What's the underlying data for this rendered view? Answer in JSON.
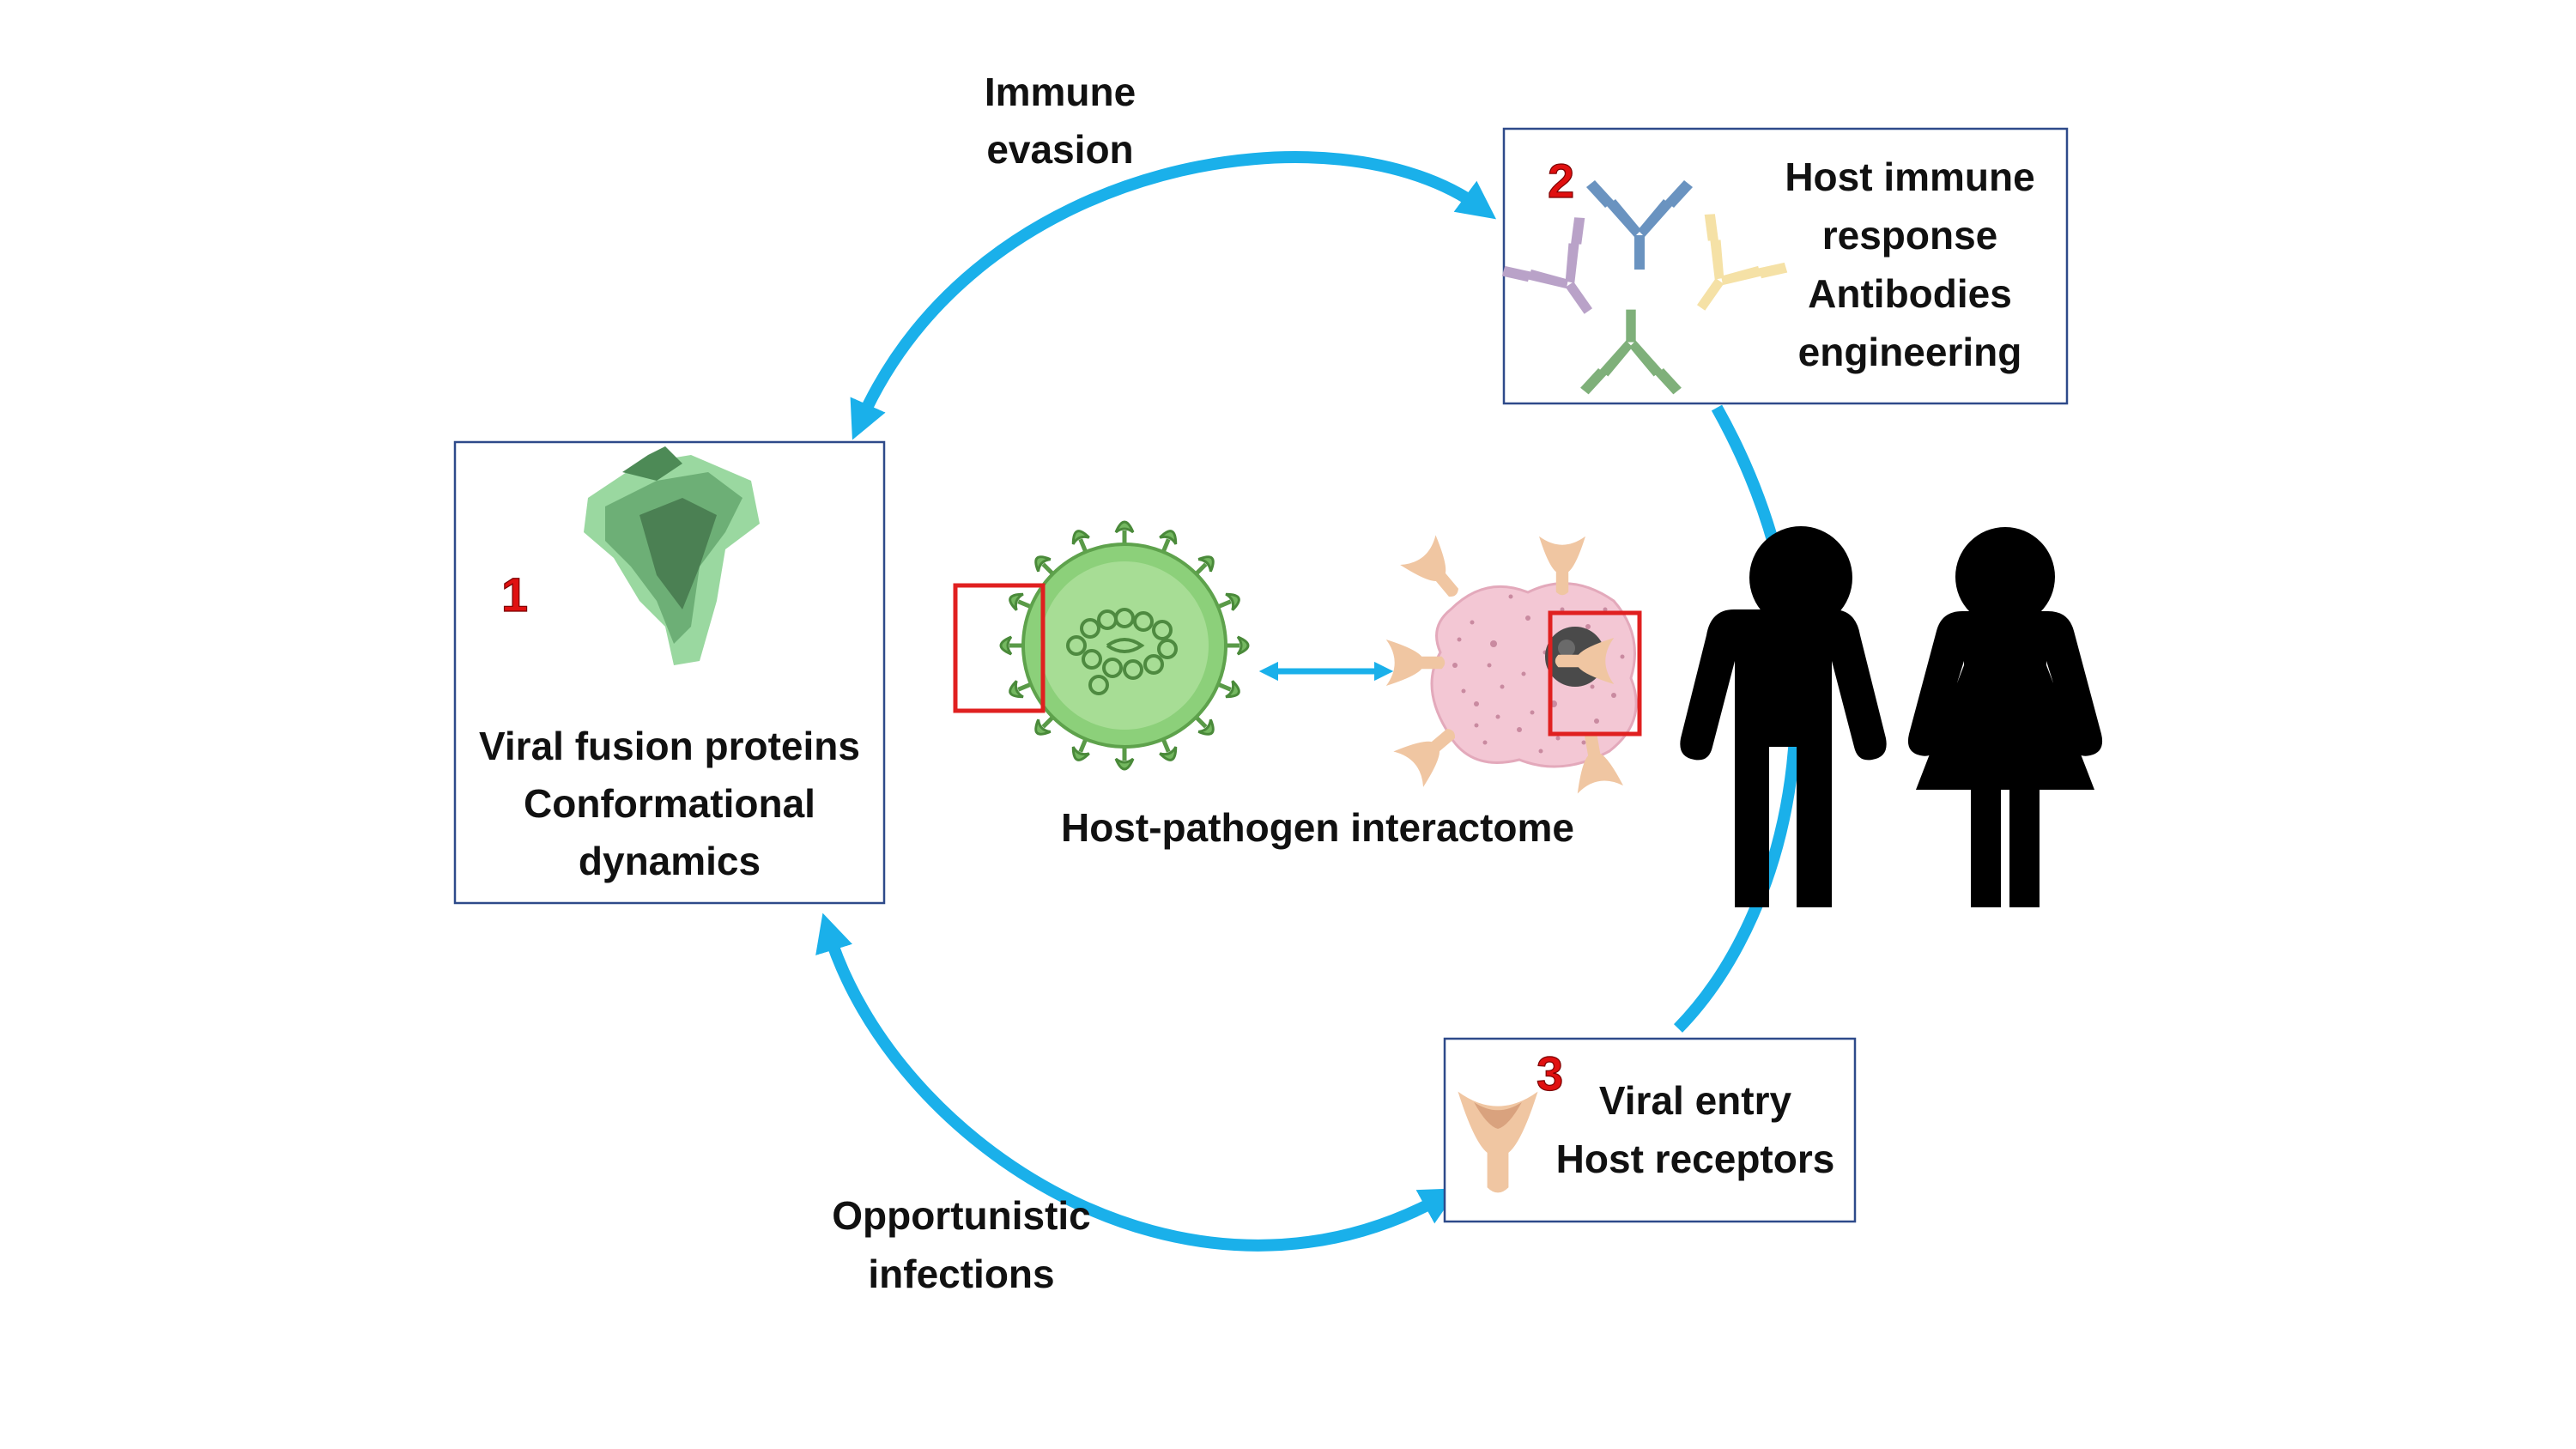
{
  "colors": {
    "arrow": "#1ab0ea",
    "box_border": "#2e4a8a",
    "number": "#e01010",
    "highlight_box": "#e02020",
    "virus_green": "#8cd07a",
    "cell_pink": "#f3c7d4",
    "receptor": "#f0c6a2"
  },
  "diagram": {
    "arrow_labels": {
      "immune_line1": "Immune",
      "immune_line2": "evasion",
      "opp_line1": "Opportunistic",
      "opp_line2": "infections"
    },
    "box1": {
      "number": "1",
      "line1": "Viral fusion proteins",
      "line2": "Conformational",
      "line3": "dynamics",
      "icon": "spike-protein-icon"
    },
    "box2": {
      "number": "2",
      "line1": "Host immune",
      "line2": "response",
      "line3": "Antibodies",
      "line4": "engineering",
      "icon": "antibody-icon"
    },
    "box3": {
      "number": "3",
      "line1": "Viral entry",
      "line2": "Host receptors",
      "icon": "receptor-icon"
    },
    "center": {
      "label": "Host-pathogen interactome",
      "icons": [
        "virus-icon",
        "bidirectional-arrow-icon",
        "host-cell-icon"
      ]
    },
    "people_icons": [
      "man-icon",
      "woman-icon"
    ]
  }
}
